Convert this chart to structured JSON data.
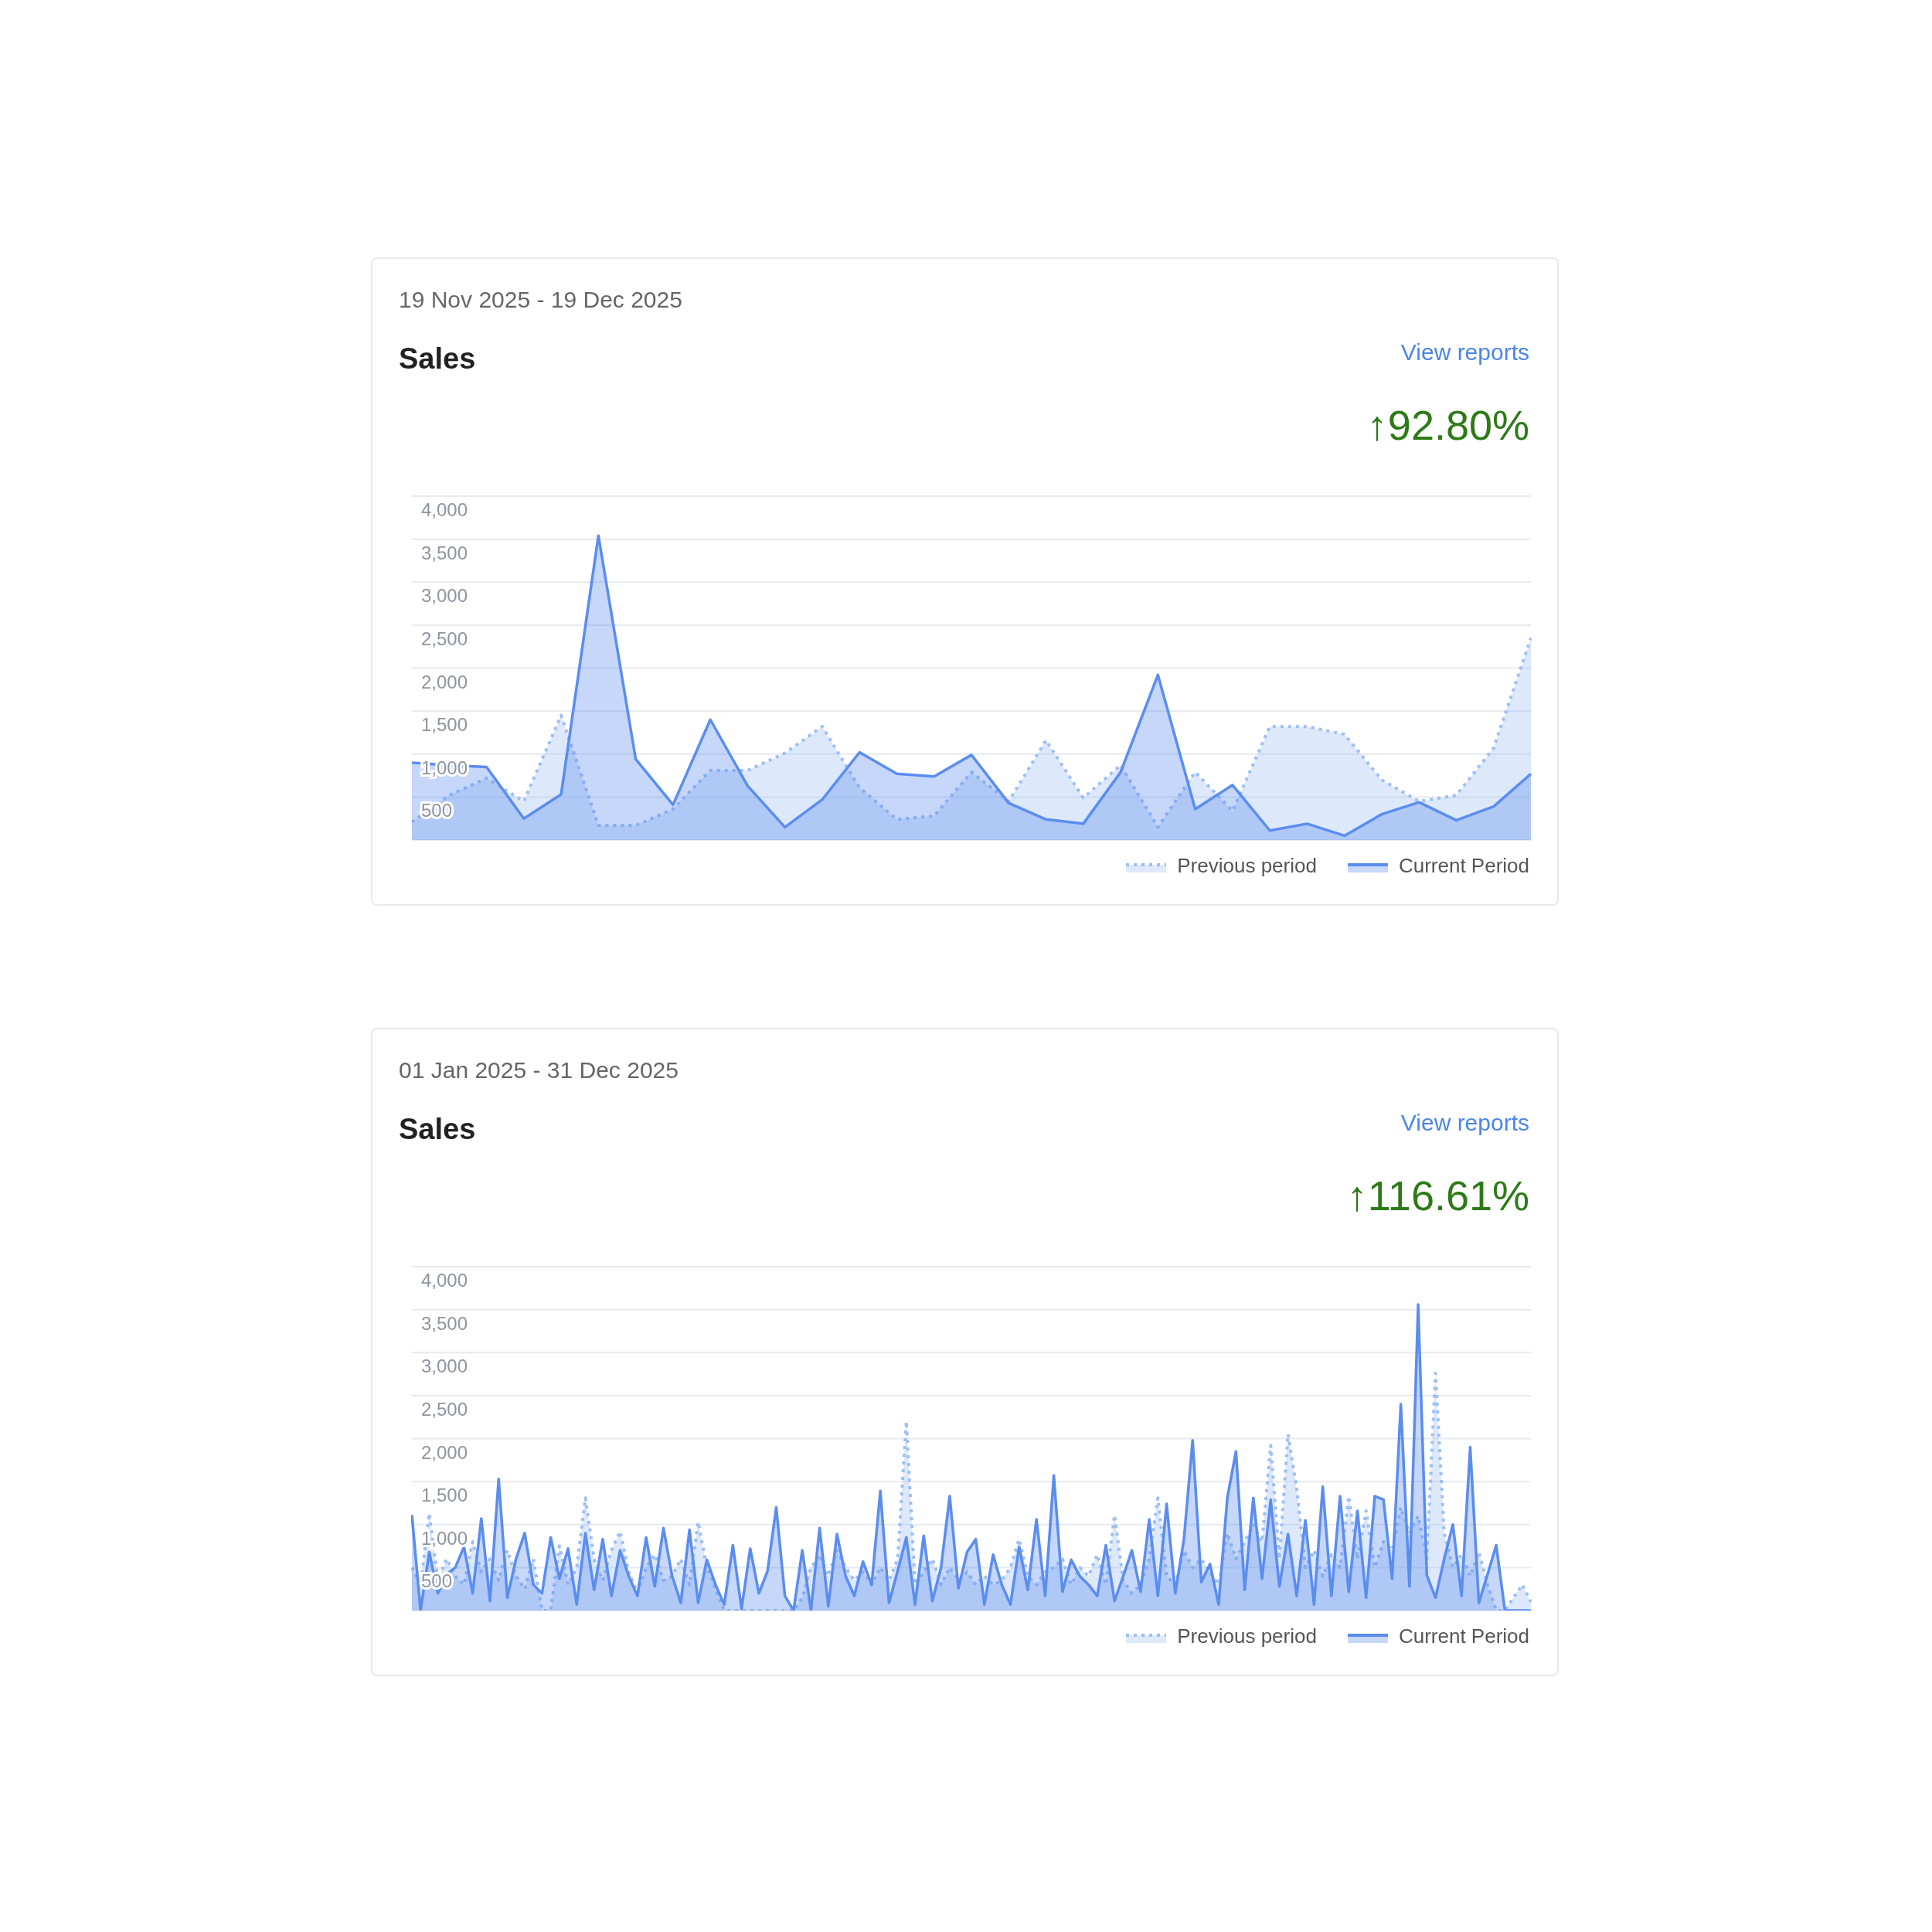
{
  "chart_data": [
    {
      "type": "area",
      "subtitle": "19 Nov 2025 - 19 Dec 2025",
      "title": "Sales",
      "annotations": [
        "View reports",
        "↑92.80%"
      ],
      "categories": [
        null,
        null,
        null,
        null,
        null,
        null,
        null,
        null,
        null,
        null,
        null,
        null,
        null,
        null,
        null,
        null,
        null,
        null,
        null,
        null,
        null,
        null,
        null,
        null,
        null,
        null,
        null,
        null,
        null,
        null,
        null
      ],
      "series": [
        {
          "name": "Previous period",
          "color": "#9dbff3",
          "line_style": "dotted",
          "values": [
            210,
            520,
            720,
            450,
            1450,
            170,
            170,
            360,
            810,
            810,
            1010,
            1320,
            610,
            240,
            280,
            790,
            450,
            1160,
            490,
            870,
            150,
            790,
            340,
            1320,
            1320,
            1230,
            700,
            450,
            520,
            1070,
            2350
          ]
        },
        {
          "name": "Current Period",
          "color": "#5b8def",
          "line_style": "solid",
          "values": [
            900,
            870,
            850,
            250,
            530,
            3540,
            940,
            410,
            1400,
            630,
            150,
            470,
            1020,
            770,
            740,
            990,
            430,
            240,
            190,
            790,
            1920,
            360,
            640,
            110,
            190,
            50,
            300,
            440,
            230,
            390,
            770
          ]
        }
      ],
      "ylim": [
        0,
        4000
      ],
      "yticks": [
        500,
        {
          "value": 1000,
          "label": "1,000"
        },
        {
          "value": 1500,
          "label": "1,500"
        },
        {
          "value": 2000,
          "label": "2,000"
        },
        {
          "value": 2500,
          "label": "2,500"
        },
        {
          "value": 3000,
          "label": "3,000"
        },
        {
          "value": 3500,
          "label": "3,500"
        },
        {
          "value": 4000,
          "label": "4,000"
        }
      ],
      "grid": "y",
      "legend": "bottom right",
      "tick_labels": "y"
    },
    {
      "type": "area",
      "subtitle": "01 Jan 2025 - 31 Dec 2025",
      "title": "Sales",
      "annotations": [
        "View reports",
        "↑116.61%"
      ],
      "categories": [
        null,
        null,
        null,
        null,
        null,
        null,
        null,
        null,
        null,
        null,
        null,
        null,
        null,
        null,
        null,
        null,
        null,
        null,
        null,
        null,
        null,
        null,
        null,
        null,
        null,
        null,
        null,
        null,
        null,
        null,
        null,
        null,
        null,
        null,
        null,
        null,
        null,
        null,
        null,
        null,
        null,
        null,
        null,
        null,
        null,
        null,
        null,
        null,
        null,
        null,
        null,
        null,
        null,
        null,
        null,
        null,
        null,
        null,
        null,
        null,
        null,
        null,
        null,
        null,
        null,
        null,
        null,
        null,
        null,
        null,
        null,
        null,
        null,
        null,
        null,
        null,
        null,
        null,
        null,
        null,
        null,
        null,
        null,
        null,
        null,
        null,
        null,
        null,
        null,
        null,
        null,
        null,
        null,
        null,
        null,
        null,
        null,
        null,
        null,
        null,
        null,
        null,
        null,
        null,
        null,
        null,
        null,
        null,
        null,
        null,
        null,
        null,
        null,
        null,
        null,
        null,
        null,
        null,
        null,
        null,
        null,
        null,
        null,
        null,
        null,
        null,
        null,
        null,
        null,
        null
      ],
      "series": [
        {
          "name": "Previous period",
          "color": "#9dbff3",
          "line_style": "dotted",
          "values": [
            500,
            300,
            1130,
            350,
            600,
            400,
            300,
            800,
            450,
            600,
            350,
            700,
            400,
            250,
            600,
            0,
            0,
            750,
            300,
            500,
            1310,
            600,
            350,
            700,
            920,
            450,
            200,
            500,
            650,
            350,
            400,
            600,
            300,
            1030,
            500,
            250,
            0,
            0,
            0,
            0,
            0,
            0,
            0,
            0,
            0,
            150,
            500,
            650,
            400,
            700,
            500,
            350,
            450,
            300,
            500,
            350,
            600,
            2200,
            300,
            450,
            600,
            300,
            500,
            350,
            450,
            300,
            400,
            300,
            350,
            500,
            830,
            400,
            300,
            450,
            500,
            600,
            300,
            500,
            400,
            650,
            300,
            1110,
            350,
            200,
            300,
            600,
            1310,
            400,
            300,
            700,
            500,
            600,
            450,
            300,
            900,
            600,
            800,
            1000,
            800,
            1920,
            600,
            2050,
            1420,
            500,
            700,
            400,
            650,
            500,
            1330,
            600,
            1160,
            500,
            800,
            700,
            1200,
            900,
            1100,
            600,
            2760,
            900,
            500,
            650,
            400,
            680,
            300,
            0,
            0,
            150,
            300,
            100
          ]
        },
        {
          "name": "Current Period",
          "color": "#5b8def",
          "line_style": "solid",
          "values": [
            1110,
            0,
            680,
            200,
            420,
            500,
            740,
            200,
            1070,
            110,
            1530,
            150,
            600,
            900,
            300,
            200,
            850,
            370,
            720,
            70,
            900,
            240,
            830,
            170,
            700,
            400,
            170,
            850,
            280,
            960,
            400,
            90,
            940,
            90,
            590,
            300,
            70,
            760,
            20,
            720,
            200,
            460,
            1200,
            170,
            0,
            700,
            0,
            960,
            50,
            890,
            400,
            170,
            570,
            300,
            1390,
            90,
            460,
            850,
            70,
            870,
            110,
            500,
            1330,
            260,
            680,
            830,
            70,
            650,
            300,
            70,
            740,
            240,
            1060,
            170,
            1570,
            220,
            590,
            400,
            300,
            170,
            760,
            110,
            400,
            700,
            220,
            1060,
            170,
            1240,
            200,
            830,
            1980,
            330,
            540,
            70,
            1310,
            1850,
            240,
            1310,
            370,
            1290,
            280,
            890,
            170,
            1050,
            70,
            1440,
            170,
            1330,
            220,
            1160,
            150,
            1330,
            1290,
            370,
            2400,
            280,
            3560,
            410,
            150,
            600,
            1000,
            170,
            1900,
            90,
            420,
            760,
            0,
            0,
            0,
            0
          ]
        }
      ],
      "ylim": [
        0,
        4000
      ],
      "yticks": [
        500,
        {
          "value": 1000,
          "label": "1,000"
        },
        {
          "value": 1500,
          "label": "1,500"
        },
        {
          "value": 2000,
          "label": "2,000"
        },
        {
          "value": 2500,
          "label": "2,500"
        },
        {
          "value": 3000,
          "label": "3,000"
        },
        {
          "value": 3500,
          "label": "3,500"
        },
        {
          "value": 4000,
          "label": "4,000"
        }
      ],
      "grid": "y",
      "legend": "bottom right",
      "tick_labels": "y"
    }
  ]
}
